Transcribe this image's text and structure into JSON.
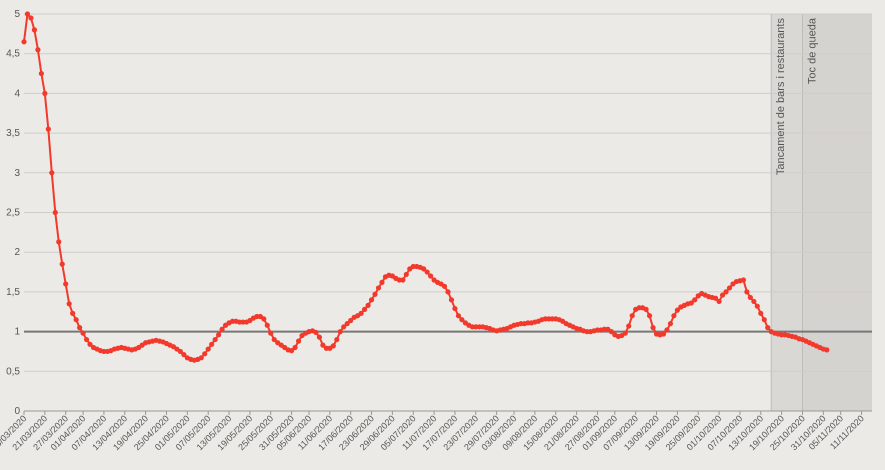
{
  "chart_data": {
    "type": "line",
    "title": "",
    "xlabel": "",
    "ylabel": "",
    "ylim": [
      0,
      5
    ],
    "grid": true,
    "legend": "none",
    "reference_line": {
      "y": 1,
      "color": "#777777"
    },
    "colors": {
      "series": "#f2392b",
      "band": "#d3d2cd",
      "background": "#eceae6",
      "grid": "#cfcdc8"
    },
    "y_ticks": [
      {
        "value": 0,
        "label": "0"
      },
      {
        "value": 0.5,
        "label": "0,5"
      },
      {
        "value": 1,
        "label": "1"
      },
      {
        "value": 1.5,
        "label": "1,5"
      },
      {
        "value": 2,
        "label": "2"
      },
      {
        "value": 2.5,
        "label": "2,5"
      },
      {
        "value": 3,
        "label": "3"
      },
      {
        "value": 3.5,
        "label": "3,5"
      },
      {
        "value": 4,
        "label": "4"
      },
      {
        "value": 4.5,
        "label": "4,5"
      },
      {
        "value": 5,
        "label": "5"
      }
    ],
    "x_start": "15/03/2020",
    "x_end": "14/11/2020",
    "x_ticks": [
      "15/03/2020",
      "21/03/2020",
      "27/03/2020",
      "01/04/2020",
      "07/04/2020",
      "13/04/2020",
      "19/04/2020",
      "25/04/2020",
      "01/05/2020",
      "07/05/2020",
      "13/05/2020",
      "19/05/2020",
      "25/05/2020",
      "31/05/2020",
      "05/06/2020",
      "11/06/2020",
      "17/06/2020",
      "23/06/2020",
      "29/06/2020",
      "05/07/2020",
      "11/07/2020",
      "17/07/2020",
      "23/07/2020",
      "29/07/2020",
      "03/08/2020",
      "09/08/2020",
      "15/08/2020",
      "21/08/2020",
      "27/08/2020",
      "01/09/2020",
      "07/09/2020",
      "13/09/2020",
      "19/09/2020",
      "25/09/2020",
      "01/10/2020",
      "07/10/2020",
      "13/10/2020",
      "19/10/2020",
      "25/10/2020",
      "31/10/2020",
      "05/11/2020",
      "11/11/2020"
    ],
    "annotations": [
      {
        "label": "Tancament de bars i restaurants",
        "from": "16/10/2020",
        "to": "14/11/2020"
      },
      {
        "label": "Toc de queda",
        "from": "25/10/2020",
        "to": "14/11/2020"
      }
    ],
    "series": [
      {
        "points": [
          [
            "15/03/2020",
            4.65
          ],
          [
            "16/03/2020",
            5.0
          ],
          [
            "17/03/2020",
            4.95
          ],
          [
            "18/03/2020",
            4.8
          ],
          [
            "19/03/2020",
            4.55
          ],
          [
            "20/03/2020",
            4.25
          ],
          [
            "21/03/2020",
            4.0
          ],
          [
            "22/03/2020",
            3.55
          ],
          [
            "23/03/2020",
            3.0
          ],
          [
            "24/03/2020",
            2.5
          ],
          [
            "25/03/2020",
            2.13
          ],
          [
            "26/03/2020",
            1.85
          ],
          [
            "27/03/2020",
            1.6
          ],
          [
            "28/03/2020",
            1.35
          ],
          [
            "29/03/2020",
            1.23
          ],
          [
            "30/03/2020",
            1.15
          ],
          [
            "31/03/2020",
            1.05
          ],
          [
            "01/04/2020",
            0.98
          ],
          [
            "02/04/2020",
            0.9
          ],
          [
            "03/04/2020",
            0.84
          ],
          [
            "04/04/2020",
            0.8
          ],
          [
            "05/04/2020",
            0.78
          ],
          [
            "06/04/2020",
            0.76
          ],
          [
            "07/04/2020",
            0.75
          ],
          [
            "08/04/2020",
            0.75
          ],
          [
            "09/04/2020",
            0.76
          ],
          [
            "10/04/2020",
            0.78
          ],
          [
            "11/04/2020",
            0.79
          ],
          [
            "12/04/2020",
            0.8
          ],
          [
            "13/04/2020",
            0.79
          ],
          [
            "14/04/2020",
            0.78
          ],
          [
            "15/04/2020",
            0.77
          ],
          [
            "16/04/2020",
            0.78
          ],
          [
            "17/04/2020",
            0.8
          ],
          [
            "18/04/2020",
            0.83
          ],
          [
            "19/04/2020",
            0.86
          ],
          [
            "20/04/2020",
            0.87
          ],
          [
            "21/04/2020",
            0.88
          ],
          [
            "22/04/2020",
            0.89
          ],
          [
            "23/04/2020",
            0.88
          ],
          [
            "24/04/2020",
            0.87
          ],
          [
            "25/04/2020",
            0.85
          ],
          [
            "26/04/2020",
            0.83
          ],
          [
            "27/04/2020",
            0.81
          ],
          [
            "28/04/2020",
            0.78
          ],
          [
            "29/04/2020",
            0.75
          ],
          [
            "30/04/2020",
            0.71
          ],
          [
            "01/05/2020",
            0.67
          ],
          [
            "02/05/2020",
            0.65
          ],
          [
            "03/05/2020",
            0.64
          ],
          [
            "04/05/2020",
            0.65
          ],
          [
            "05/05/2020",
            0.67
          ],
          [
            "06/05/2020",
            0.72
          ],
          [
            "07/05/2020",
            0.78
          ],
          [
            "08/05/2020",
            0.84
          ],
          [
            "09/05/2020",
            0.9
          ],
          [
            "10/05/2020",
            0.96
          ],
          [
            "11/05/2020",
            1.03
          ],
          [
            "12/05/2020",
            1.08
          ],
          [
            "13/05/2020",
            1.11
          ],
          [
            "14/05/2020",
            1.13
          ],
          [
            "15/05/2020",
            1.13
          ],
          [
            "16/05/2020",
            1.12
          ],
          [
            "17/05/2020",
            1.12
          ],
          [
            "18/05/2020",
            1.12
          ],
          [
            "19/05/2020",
            1.14
          ],
          [
            "20/05/2020",
            1.17
          ],
          [
            "21/05/2020",
            1.19
          ],
          [
            "22/05/2020",
            1.19
          ],
          [
            "23/05/2020",
            1.16
          ],
          [
            "24/05/2020",
            1.08
          ],
          [
            "25/05/2020",
            0.98
          ],
          [
            "26/05/2020",
            0.9
          ],
          [
            "27/05/2020",
            0.86
          ],
          [
            "28/05/2020",
            0.83
          ],
          [
            "29/05/2020",
            0.8
          ],
          [
            "30/05/2020",
            0.77
          ],
          [
            "31/05/2020",
            0.76
          ],
          [
            "01/06/2020",
            0.8
          ],
          [
            "02/06/2020",
            0.88
          ],
          [
            "03/06/2020",
            0.95
          ],
          [
            "04/06/2020",
            0.98
          ],
          [
            "05/06/2020",
            1.0
          ],
          [
            "06/06/2020",
            1.01
          ],
          [
            "07/06/2020",
            0.99
          ],
          [
            "08/06/2020",
            0.93
          ],
          [
            "09/06/2020",
            0.83
          ],
          [
            "10/06/2020",
            0.79
          ],
          [
            "11/06/2020",
            0.79
          ],
          [
            "12/06/2020",
            0.82
          ],
          [
            "13/06/2020",
            0.9
          ],
          [
            "14/06/2020",
            1.0
          ],
          [
            "15/06/2020",
            1.06
          ],
          [
            "16/06/2020",
            1.1
          ],
          [
            "17/06/2020",
            1.14
          ],
          [
            "18/06/2020",
            1.18
          ],
          [
            "19/06/2020",
            1.2
          ],
          [
            "20/06/2020",
            1.23
          ],
          [
            "21/06/2020",
            1.28
          ],
          [
            "22/06/2020",
            1.33
          ],
          [
            "23/06/2020",
            1.4
          ],
          [
            "24/06/2020",
            1.47
          ],
          [
            "25/06/2020",
            1.55
          ],
          [
            "26/06/2020",
            1.62
          ],
          [
            "27/06/2020",
            1.69
          ],
          [
            "28/06/2020",
            1.71
          ],
          [
            "29/06/2020",
            1.7
          ],
          [
            "30/06/2020",
            1.67
          ],
          [
            "01/07/2020",
            1.65
          ],
          [
            "02/07/2020",
            1.65
          ],
          [
            "03/07/2020",
            1.72
          ],
          [
            "04/07/2020",
            1.79
          ],
          [
            "05/07/2020",
            1.82
          ],
          [
            "06/07/2020",
            1.82
          ],
          [
            "07/07/2020",
            1.81
          ],
          [
            "08/07/2020",
            1.79
          ],
          [
            "09/07/2020",
            1.75
          ],
          [
            "10/07/2020",
            1.7
          ],
          [
            "11/07/2020",
            1.65
          ],
          [
            "12/07/2020",
            1.62
          ],
          [
            "13/07/2020",
            1.6
          ],
          [
            "14/07/2020",
            1.57
          ],
          [
            "15/07/2020",
            1.5
          ],
          [
            "16/07/2020",
            1.4
          ],
          [
            "17/07/2020",
            1.29
          ],
          [
            "18/07/2020",
            1.2
          ],
          [
            "19/07/2020",
            1.15
          ],
          [
            "20/07/2020",
            1.11
          ],
          [
            "21/07/2020",
            1.08
          ],
          [
            "22/07/2020",
            1.06
          ],
          [
            "23/07/2020",
            1.06
          ],
          [
            "24/07/2020",
            1.06
          ],
          [
            "25/07/2020",
            1.06
          ],
          [
            "26/07/2020",
            1.05
          ],
          [
            "27/07/2020",
            1.04
          ],
          [
            "28/07/2020",
            1.02
          ],
          [
            "29/07/2020",
            1.01
          ],
          [
            "30/07/2020",
            1.02
          ],
          [
            "31/07/2020",
            1.03
          ],
          [
            "01/08/2020",
            1.04
          ],
          [
            "02/08/2020",
            1.06
          ],
          [
            "03/08/2020",
            1.08
          ],
          [
            "04/08/2020",
            1.09
          ],
          [
            "05/08/2020",
            1.1
          ],
          [
            "06/08/2020",
            1.1
          ],
          [
            "07/08/2020",
            1.11
          ],
          [
            "08/08/2020",
            1.11
          ],
          [
            "09/08/2020",
            1.12
          ],
          [
            "10/08/2020",
            1.13
          ],
          [
            "11/08/2020",
            1.15
          ],
          [
            "12/08/2020",
            1.16
          ],
          [
            "13/08/2020",
            1.16
          ],
          [
            "14/08/2020",
            1.16
          ],
          [
            "15/08/2020",
            1.16
          ],
          [
            "16/08/2020",
            1.15
          ],
          [
            "17/08/2020",
            1.13
          ],
          [
            "18/08/2020",
            1.1
          ],
          [
            "19/08/2020",
            1.08
          ],
          [
            "20/08/2020",
            1.06
          ],
          [
            "21/08/2020",
            1.04
          ],
          [
            "22/08/2020",
            1.03
          ],
          [
            "23/08/2020",
            1.01
          ],
          [
            "24/08/2020",
            1.0
          ],
          [
            "25/08/2020",
            1.0
          ],
          [
            "26/08/2020",
            1.01
          ],
          [
            "27/08/2020",
            1.02
          ],
          [
            "28/08/2020",
            1.02
          ],
          [
            "29/08/2020",
            1.03
          ],
          [
            "30/08/2020",
            1.03
          ],
          [
            "31/08/2020",
            1.0
          ],
          [
            "01/09/2020",
            0.96
          ],
          [
            "02/09/2020",
            0.94
          ],
          [
            "03/09/2020",
            0.95
          ],
          [
            "04/09/2020",
            0.98
          ],
          [
            "05/09/2020",
            1.07
          ],
          [
            "06/09/2020",
            1.2
          ],
          [
            "07/09/2020",
            1.28
          ],
          [
            "08/09/2020",
            1.3
          ],
          [
            "09/09/2020",
            1.3
          ],
          [
            "10/09/2020",
            1.28
          ],
          [
            "11/09/2020",
            1.2
          ],
          [
            "12/09/2020",
            1.05
          ],
          [
            "13/09/2020",
            0.97
          ],
          [
            "14/09/2020",
            0.96
          ],
          [
            "15/09/2020",
            0.97
          ],
          [
            "16/09/2020",
            1.02
          ],
          [
            "17/09/2020",
            1.1
          ],
          [
            "18/09/2020",
            1.2
          ],
          [
            "19/09/2020",
            1.27
          ],
          [
            "20/09/2020",
            1.31
          ],
          [
            "21/09/2020",
            1.33
          ],
          [
            "22/09/2020",
            1.35
          ],
          [
            "23/09/2020",
            1.36
          ],
          [
            "24/09/2020",
            1.4
          ],
          [
            "25/09/2020",
            1.45
          ],
          [
            "26/09/2020",
            1.48
          ],
          [
            "27/09/2020",
            1.46
          ],
          [
            "28/09/2020",
            1.44
          ],
          [
            "29/09/2020",
            1.43
          ],
          [
            "30/09/2020",
            1.42
          ],
          [
            "01/10/2020",
            1.38
          ],
          [
            "02/10/2020",
            1.46
          ],
          [
            "03/10/2020",
            1.5
          ],
          [
            "04/10/2020",
            1.55
          ],
          [
            "05/10/2020",
            1.6
          ],
          [
            "06/10/2020",
            1.63
          ],
          [
            "07/10/2020",
            1.64
          ],
          [
            "08/10/2020",
            1.65
          ],
          [
            "09/10/2020",
            1.5
          ],
          [
            "10/10/2020",
            1.43
          ],
          [
            "11/10/2020",
            1.38
          ],
          [
            "12/10/2020",
            1.32
          ],
          [
            "13/10/2020",
            1.23
          ],
          [
            "14/10/2020",
            1.15
          ],
          [
            "15/10/2020",
            1.05
          ],
          [
            "16/10/2020",
            1.0
          ],
          [
            "17/10/2020",
            0.98
          ],
          [
            "18/10/2020",
            0.97
          ],
          [
            "19/10/2020",
            0.96
          ],
          [
            "20/10/2020",
            0.96
          ],
          [
            "21/10/2020",
            0.95
          ],
          [
            "22/10/2020",
            0.94
          ],
          [
            "23/10/2020",
            0.93
          ],
          [
            "24/10/2020",
            0.91
          ],
          [
            "25/10/2020",
            0.9
          ],
          [
            "26/10/2020",
            0.88
          ],
          [
            "27/10/2020",
            0.86
          ],
          [
            "28/10/2020",
            0.84
          ],
          [
            "29/10/2020",
            0.82
          ],
          [
            "30/10/2020",
            0.8
          ],
          [
            "31/10/2020",
            0.78
          ],
          [
            "01/11/2020",
            0.77
          ]
        ]
      }
    ]
  }
}
